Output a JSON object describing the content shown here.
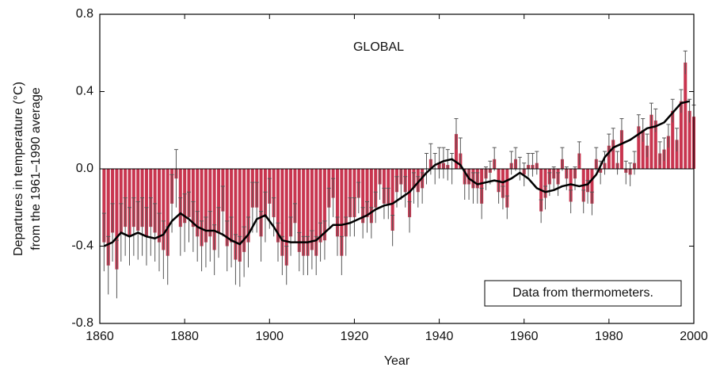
{
  "chart_data": {
    "type": "bar",
    "title": "GLOBAL",
    "ylabel": [
      "Departures in temperature (°C)",
      "from the 1961–1990 average"
    ],
    "xlabel": "Year",
    "annotation": "Data from thermometers.",
    "color": "#c8354f",
    "x": [
      1861,
      1862,
      1863,
      1864,
      1865,
      1866,
      1867,
      1868,
      1869,
      1870,
      1871,
      1872,
      1873,
      1874,
      1875,
      1876,
      1877,
      1878,
      1879,
      1880,
      1881,
      1882,
      1883,
      1884,
      1885,
      1886,
      1887,
      1888,
      1889,
      1890,
      1891,
      1892,
      1893,
      1894,
      1895,
      1896,
      1897,
      1898,
      1899,
      1900,
      1901,
      1902,
      1903,
      1904,
      1905,
      1906,
      1907,
      1908,
      1909,
      1910,
      1911,
      1912,
      1913,
      1914,
      1915,
      1916,
      1917,
      1918,
      1919,
      1920,
      1921,
      1922,
      1923,
      1924,
      1925,
      1926,
      1927,
      1928,
      1929,
      1930,
      1931,
      1932,
      1933,
      1934,
      1935,
      1936,
      1937,
      1938,
      1939,
      1940,
      1941,
      1942,
      1943,
      1944,
      1945,
      1946,
      1947,
      1948,
      1949,
      1950,
      1951,
      1952,
      1953,
      1954,
      1955,
      1956,
      1957,
      1958,
      1959,
      1960,
      1961,
      1962,
      1963,
      1964,
      1965,
      1966,
      1967,
      1968,
      1969,
      1970,
      1971,
      1972,
      1973,
      1974,
      1975,
      1976,
      1977,
      1978,
      1979,
      1980,
      1981,
      1982,
      1983,
      1984,
      1985,
      1986,
      1987,
      1988,
      1989,
      1990,
      1991,
      1992,
      1993,
      1994,
      1995,
      1996,
      1997,
      1998,
      1999,
      2000
    ],
    "values": [
      -0.38,
      -0.5,
      -0.33,
      -0.52,
      -0.33,
      -0.3,
      -0.35,
      -0.3,
      -0.32,
      -0.3,
      -0.35,
      -0.3,
      -0.33,
      -0.38,
      -0.42,
      -0.45,
      -0.18,
      -0.05,
      -0.3,
      -0.28,
      -0.25,
      -0.3,
      -0.35,
      -0.4,
      -0.38,
      -0.35,
      -0.42,
      -0.33,
      -0.22,
      -0.4,
      -0.38,
      -0.47,
      -0.48,
      -0.43,
      -0.38,
      -0.2,
      -0.2,
      -0.35,
      -0.25,
      -0.18,
      -0.25,
      -0.38,
      -0.45,
      -0.5,
      -0.35,
      -0.28,
      -0.43,
      -0.45,
      -0.45,
      -0.42,
      -0.45,
      -0.38,
      -0.37,
      -0.2,
      -0.15,
      -0.35,
      -0.45,
      -0.35,
      -0.25,
      -0.25,
      -0.15,
      -0.28,
      -0.25,
      -0.28,
      -0.2,
      -0.08,
      -0.18,
      -0.18,
      -0.32,
      -0.12,
      -0.08,
      -0.12,
      -0.25,
      -0.1,
      -0.12,
      -0.1,
      0.0,
      0.05,
      0.0,
      0.03,
      0.03,
      0.02,
      0.0,
      0.18,
      0.08,
      -0.08,
      -0.08,
      -0.1,
      -0.1,
      -0.18,
      -0.05,
      -0.02,
      0.05,
      -0.12,
      -0.15,
      -0.2,
      0.03,
      0.05,
      0.0,
      -0.03,
      0.02,
      0.02,
      0.03,
      -0.22,
      -0.15,
      -0.08,
      -0.05,
      -0.08,
      0.05,
      -0.05,
      -0.17,
      -0.05,
      0.08,
      -0.17,
      -0.12,
      -0.18,
      0.05,
      -0.02,
      0.03,
      0.12,
      0.15,
      0.03,
      0.2,
      -0.02,
      -0.03,
      0.03,
      0.22,
      0.2,
      0.12,
      0.28,
      0.25,
      0.08,
      0.1,
      0.17,
      0.3,
      0.15,
      0.35,
      0.55,
      0.3,
      0.27
    ],
    "errors": [
      0.15,
      0.15,
      0.15,
      0.15,
      0.15,
      0.15,
      0.15,
      0.15,
      0.15,
      0.15,
      0.15,
      0.15,
      0.15,
      0.15,
      0.15,
      0.15,
      0.15,
      0.15,
      0.15,
      0.15,
      0.13,
      0.13,
      0.13,
      0.13,
      0.13,
      0.13,
      0.13,
      0.13,
      0.13,
      0.13,
      0.13,
      0.13,
      0.13,
      0.13,
      0.13,
      0.13,
      0.13,
      0.13,
      0.13,
      0.13,
      0.1,
      0.1,
      0.1,
      0.1,
      0.1,
      0.1,
      0.1,
      0.1,
      0.1,
      0.1,
      0.1,
      0.1,
      0.1,
      0.1,
      0.1,
      0.1,
      0.1,
      0.1,
      0.1,
      0.1,
      0.08,
      0.08,
      0.08,
      0.08,
      0.08,
      0.08,
      0.08,
      0.08,
      0.08,
      0.08,
      0.08,
      0.08,
      0.08,
      0.08,
      0.08,
      0.08,
      0.08,
      0.08,
      0.08,
      0.08,
      0.08,
      0.08,
      0.08,
      0.08,
      0.08,
      0.08,
      0.08,
      0.08,
      0.08,
      0.08,
      0.06,
      0.06,
      0.06,
      0.06,
      0.06,
      0.06,
      0.06,
      0.06,
      0.06,
      0.06,
      0.06,
      0.06,
      0.06,
      0.06,
      0.06,
      0.06,
      0.06,
      0.06,
      0.06,
      0.06,
      0.06,
      0.06,
      0.06,
      0.06,
      0.06,
      0.06,
      0.06,
      0.06,
      0.06,
      0.06,
      0.06,
      0.06,
      0.06,
      0.06,
      0.06,
      0.06,
      0.06,
      0.06,
      0.06,
      0.06,
      0.06,
      0.06,
      0.06,
      0.06,
      0.06,
      0.06,
      0.06,
      0.06,
      0.06,
      0.06
    ],
    "smooth": {
      "type": "line",
      "color": "#000000",
      "x": [
        1861,
        1863,
        1865,
        1867,
        1869,
        1871,
        1873,
        1875,
        1877,
        1879,
        1881,
        1883,
        1885,
        1887,
        1889,
        1891,
        1893,
        1895,
        1897,
        1899,
        1901,
        1903,
        1905,
        1907,
        1909,
        1911,
        1913,
        1915,
        1917,
        1919,
        1921,
        1923,
        1925,
        1927,
        1929,
        1931,
        1933,
        1935,
        1937,
        1939,
        1941,
        1943,
        1945,
        1947,
        1949,
        1951,
        1953,
        1955,
        1957,
        1959,
        1961,
        1963,
        1965,
        1967,
        1969,
        1971,
        1973,
        1975,
        1977,
        1979,
        1981,
        1983,
        1985,
        1987,
        1989,
        1991,
        1993,
        1995,
        1997,
        1999
      ],
      "values": [
        -0.4,
        -0.38,
        -0.33,
        -0.35,
        -0.33,
        -0.35,
        -0.36,
        -0.34,
        -0.27,
        -0.23,
        -0.26,
        -0.3,
        -0.32,
        -0.32,
        -0.34,
        -0.37,
        -0.39,
        -0.34,
        -0.26,
        -0.24,
        -0.3,
        -0.37,
        -0.38,
        -0.38,
        -0.38,
        -0.37,
        -0.33,
        -0.29,
        -0.29,
        -0.28,
        -0.26,
        -0.24,
        -0.21,
        -0.19,
        -0.18,
        -0.15,
        -0.12,
        -0.07,
        -0.02,
        0.02,
        0.04,
        0.05,
        0.02,
        -0.05,
        -0.08,
        -0.07,
        -0.06,
        -0.07,
        -0.05,
        -0.02,
        -0.05,
        -0.1,
        -0.12,
        -0.11,
        -0.09,
        -0.08,
        -0.09,
        -0.08,
        -0.03,
        0.06,
        0.11,
        0.13,
        0.15,
        0.18,
        0.21,
        0.22,
        0.24,
        0.29,
        0.34,
        0.35
      ]
    },
    "xlim": [
      1860,
      2000
    ],
    "xticks": [
      1860,
      1880,
      1900,
      1920,
      1940,
      1960,
      1980,
      2000
    ],
    "ylim": [
      -0.8,
      0.8
    ],
    "yticks": [
      0.8,
      0.4,
      {
        "value": 0,
        "label": "0.0"
      },
      -0.4,
      -0.8
    ]
  }
}
